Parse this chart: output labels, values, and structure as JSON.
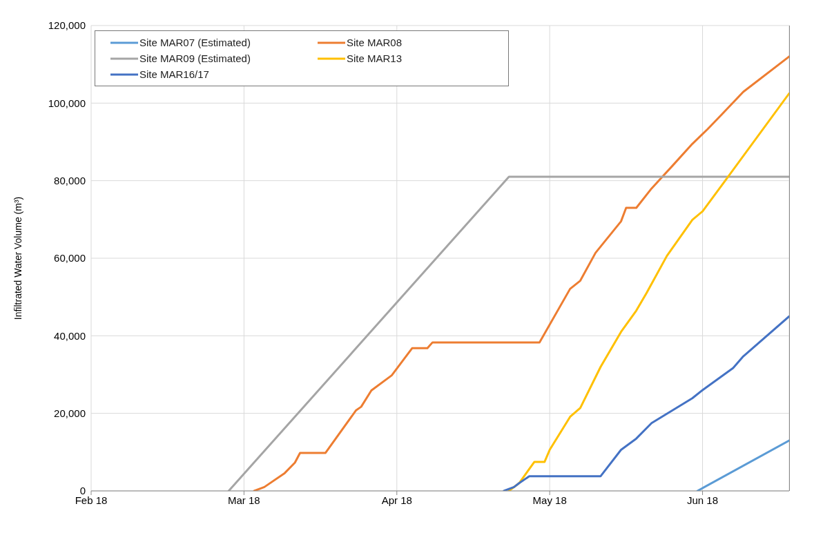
{
  "chart_data": {
    "type": "line",
    "ylabel": "Infiltrated Water Volume (m³)",
    "xlim": [
      "2018-02-01",
      "2018-06-18"
    ],
    "xticks": [
      {
        "value": "2018-02-01",
        "label": "Feb 18"
      },
      {
        "value": "2018-03-03",
        "label": "Mar 18"
      },
      {
        "value": "2018-04-02",
        "label": "Apr 18"
      },
      {
        "value": "2018-05-02",
        "label": "May 18"
      },
      {
        "value": "2018-06-01",
        "label": "Jun 18"
      }
    ],
    "ylim": [
      0,
      120000
    ],
    "yticks": [
      0,
      {
        "value": 20000,
        "label": "20,000"
      },
      {
        "value": 40000,
        "label": "40,000"
      },
      {
        "value": 60000,
        "label": "60,000"
      },
      {
        "value": 80000,
        "label": "80,000"
      },
      {
        "value": 100000,
        "label": "100,000"
      },
      {
        "value": 120000,
        "label": "120,000"
      }
    ],
    "grid": true,
    "legend": "top left",
    "series": [
      {
        "name": "Site MAR07 (Estimated)",
        "color": "#5b9bd5",
        "x": [
          "2018-05-31",
          "2018-06-18"
        ],
        "values": [
          0,
          13000
        ]
      },
      {
        "name": "Site MAR08",
        "color": "#ed7d31",
        "x": [
          "2018-03-05",
          "2018-03-07",
          "2018-03-11",
          "2018-03-13",
          "2018-03-14",
          "2018-03-19",
          "2018-03-25",
          "2018-03-26",
          "2018-03-28",
          "2018-04-01",
          "2018-04-05",
          "2018-04-08",
          "2018-04-09",
          "2018-04-30",
          "2018-05-06",
          "2018-05-08",
          "2018-05-11",
          "2018-05-16",
          "2018-05-17",
          "2018-05-19",
          "2018-05-22",
          "2018-05-26",
          "2018-05-30",
          "2018-06-02",
          "2018-06-05",
          "2018-06-09",
          "2018-06-18"
        ],
        "values": [
          0,
          1000,
          4600,
          7300,
          9800,
          9800,
          20800,
          21700,
          25900,
          29800,
          36800,
          36800,
          38300,
          38300,
          52100,
          54200,
          61400,
          69500,
          73000,
          73000,
          78000,
          83700,
          89500,
          93300,
          97400,
          102900,
          112000
        ]
      },
      {
        "name": "Site MAR09 (Estimated)",
        "color": "#a5a5a5",
        "x": [
          "2018-02-28",
          "2018-04-24",
          "2018-06-18"
        ],
        "values": [
          0,
          81000,
          81000
        ]
      },
      {
        "name": "Site MAR13",
        "color": "#ffc000",
        "x": [
          "2018-04-24",
          "2018-04-26",
          "2018-04-29",
          "2018-05-01",
          "2018-05-02",
          "2018-05-06",
          "2018-05-08",
          "2018-05-12",
          "2018-05-16",
          "2018-05-19",
          "2018-05-21",
          "2018-05-25",
          "2018-05-30",
          "2018-06-01",
          "2018-06-06",
          "2018-06-18"
        ],
        "values": [
          0,
          2000,
          7500,
          7500,
          10600,
          19100,
          21400,
          32000,
          41000,
          46500,
          51000,
          60600,
          69900,
          72100,
          81000,
          102500
        ]
      },
      {
        "name": "Site MAR16/17",
        "color": "#4472c4",
        "x": [
          "2018-04-23",
          "2018-04-25",
          "2018-04-26",
          "2018-04-28",
          "2018-05-12",
          "2018-05-16",
          "2018-05-19",
          "2018-05-22",
          "2018-05-30",
          "2018-06-01",
          "2018-06-07",
          "2018-06-09",
          "2018-06-18"
        ],
        "values": [
          0,
          1000,
          2000,
          3800,
          3800,
          10600,
          13500,
          17500,
          23900,
          26000,
          31700,
          34700,
          45000
        ]
      }
    ]
  }
}
